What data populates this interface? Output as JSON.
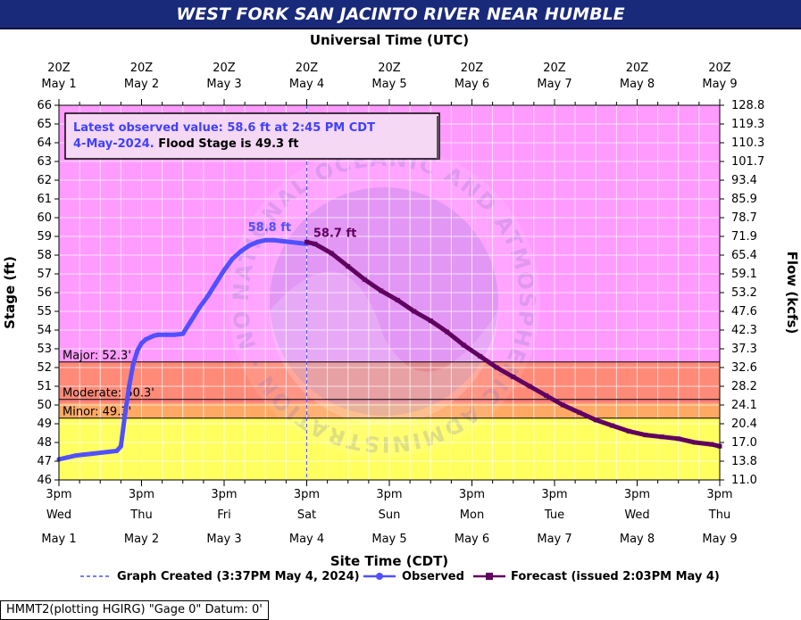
{
  "colors": {
    "title_bg": "#1a2a7a",
    "action_band": "#ff9aff",
    "major_band": "#ff8a78",
    "moderate_band": "#ff8080",
    "minor_band": "#ffb060",
    "normal_band": "#ffff60",
    "observed": "#5050ff",
    "forecast": "#600060",
    "created_line": "#5050ff",
    "latest_text": "#4040ff"
  },
  "chart_data": {
    "type": "line",
    "title": "WEST FORK SAN JACINTO RIVER NEAR HUMBLE",
    "top_axis_title": "Universal Time (UTC)",
    "bottom_axis_title": "Site Time (CDT)",
    "ylabel": "Stage (ft)",
    "y2label": "Flow (kcfs)",
    "ylim": [
      46,
      66
    ],
    "y_ticks": [
      "46",
      "47",
      "48",
      "49",
      "50",
      "51",
      "52",
      "53",
      "54",
      "55",
      "56",
      "57",
      "58",
      "59",
      "60",
      "61",
      "62",
      "63",
      "64",
      "65",
      "66"
    ],
    "y2_ticks": [
      {
        "stage": 46,
        "label": "11.0"
      },
      {
        "stage": 47,
        "label": "13.8"
      },
      {
        "stage": 48,
        "label": "17.0"
      },
      {
        "stage": 49,
        "label": "20.4"
      },
      {
        "stage": 50,
        "label": "24.1"
      },
      {
        "stage": 51,
        "label": "28.2"
      },
      {
        "stage": 52,
        "label": "32.6"
      },
      {
        "stage": 53,
        "label": "37.3"
      },
      {
        "stage": 54,
        "label": "42.3"
      },
      {
        "stage": 55,
        "label": "47.6"
      },
      {
        "stage": 56,
        "label": "53.2"
      },
      {
        "stage": 57,
        "label": "59.1"
      },
      {
        "stage": 58,
        "label": "65.4"
      },
      {
        "stage": 59,
        "label": "71.9"
      },
      {
        "stage": 60,
        "label": "78.7"
      },
      {
        "stage": 61,
        "label": "85.9"
      },
      {
        "stage": 62,
        "label": "93.4"
      },
      {
        "stage": 63,
        "label": "101.7"
      },
      {
        "stage": 64,
        "label": "110.3"
      },
      {
        "stage": 65,
        "label": "119.3"
      },
      {
        "stage": 66,
        "label": "128.8"
      }
    ],
    "x_days": [
      {
        "utc_top": "20Z",
        "utc_date": "May  1",
        "time": "3pm",
        "weekday": "Wed",
        "date": "May 1"
      },
      {
        "utc_top": "20Z",
        "utc_date": "May  2",
        "time": "3pm",
        "weekday": "Thu",
        "date": "May 2"
      },
      {
        "utc_top": "20Z",
        "utc_date": "May  3",
        "time": "3pm",
        "weekday": "Fri",
        "date": "May 3"
      },
      {
        "utc_top": "20Z",
        "utc_date": "May  4",
        "time": "3pm",
        "weekday": "Sat",
        "date": "May 4"
      },
      {
        "utc_top": "20Z",
        "utc_date": "May  5",
        "time": "3pm",
        "weekday": "Sun",
        "date": "May 5"
      },
      {
        "utc_top": "20Z",
        "utc_date": "May  6",
        "time": "3pm",
        "weekday": "Mon",
        "date": "May 6"
      },
      {
        "utc_top": "20Z",
        "utc_date": "May  7",
        "time": "3pm",
        "weekday": "Tue",
        "date": "May 7"
      },
      {
        "utc_top": "20Z",
        "utc_date": "May  8",
        "time": "3pm",
        "weekday": "Wed",
        "date": "May 8"
      },
      {
        "utc_top": "20Z",
        "utc_date": "May  9",
        "time": "3pm",
        "weekday": "Thu",
        "date": "May 9"
      }
    ],
    "x_unit": "days since 3pm CDT May 1",
    "thresholds": [
      {
        "name": "Major",
        "label": "Major: 52.3'",
        "stage": 52.3
      },
      {
        "name": "Moderate",
        "label": "Moderate: 50.3'",
        "stage": 50.3
      },
      {
        "name": "Minor",
        "label": "Minor: 49.3'",
        "stage": 49.3
      }
    ],
    "action_top": 66,
    "graph_created_x": 3.0,
    "series": [
      {
        "name": "Observed",
        "x": [
          0,
          0.1,
          0.2,
          0.3,
          0.4,
          0.5,
          0.6,
          0.7,
          0.75,
          0.8,
          0.85,
          0.9,
          0.95,
          1.0,
          1.05,
          1.1,
          1.15,
          1.2,
          1.3,
          1.4,
          1.5,
          1.6,
          1.7,
          1.8,
          1.9,
          2.0,
          2.1,
          2.2,
          2.3,
          2.4,
          2.5,
          2.6,
          2.7,
          2.8,
          2.9,
          3.0
        ],
        "y": [
          47.1,
          47.2,
          47.3,
          47.35,
          47.4,
          47.45,
          47.5,
          47.55,
          47.8,
          49.5,
          51.0,
          52.2,
          52.9,
          53.3,
          53.5,
          53.6,
          53.7,
          53.75,
          53.75,
          53.75,
          53.8,
          54.5,
          55.2,
          55.8,
          56.5,
          57.2,
          57.8,
          58.2,
          58.5,
          58.7,
          58.8,
          58.8,
          58.75,
          58.7,
          58.65,
          58.6
        ]
      },
      {
        "name": "Forecast (issued 2:03PM May 4)",
        "x": [
          3.0,
          3.1,
          3.3,
          3.5,
          3.7,
          3.9,
          4.1,
          4.3,
          4.5,
          4.7,
          4.9,
          5.1,
          5.3,
          5.5,
          5.7,
          5.9,
          6.1,
          6.3,
          6.5,
          6.7,
          6.9,
          7.1,
          7.3,
          7.5,
          7.7,
          7.9,
          8.0
        ],
        "y": [
          58.7,
          58.6,
          58.1,
          57.4,
          56.7,
          56.1,
          55.6,
          55.0,
          54.5,
          53.9,
          53.2,
          52.6,
          52.0,
          51.5,
          51.0,
          50.5,
          50.0,
          49.6,
          49.2,
          48.9,
          48.6,
          48.4,
          48.3,
          48.2,
          48.0,
          47.9,
          47.8
        ]
      }
    ],
    "peak_observed_label": "58.8 ft",
    "forecast_start_label": "58.7 ft",
    "latest_observed": {
      "line1": "Latest observed value: 58.6 ft at 2:45 PM CDT",
      "line2_a": "4-May-2024.",
      "line2_b": " Flood Stage is 49.3 ft"
    },
    "legend": {
      "created": "Graph Created (3:37PM May 4, 2024)",
      "observed": "Observed",
      "forecast": "Forecast (issued 2:03PM May 4)"
    },
    "watermark": "NATIONAL OCEANIC AND ATMOSPHERIC ADMINISTRATION · NOAA · U.S. DEPARTMENT OF COMMERCE"
  },
  "footer": {
    "text": "HMMT2(plotting HGIRG) \"Gage 0\" Datum: 0'"
  }
}
